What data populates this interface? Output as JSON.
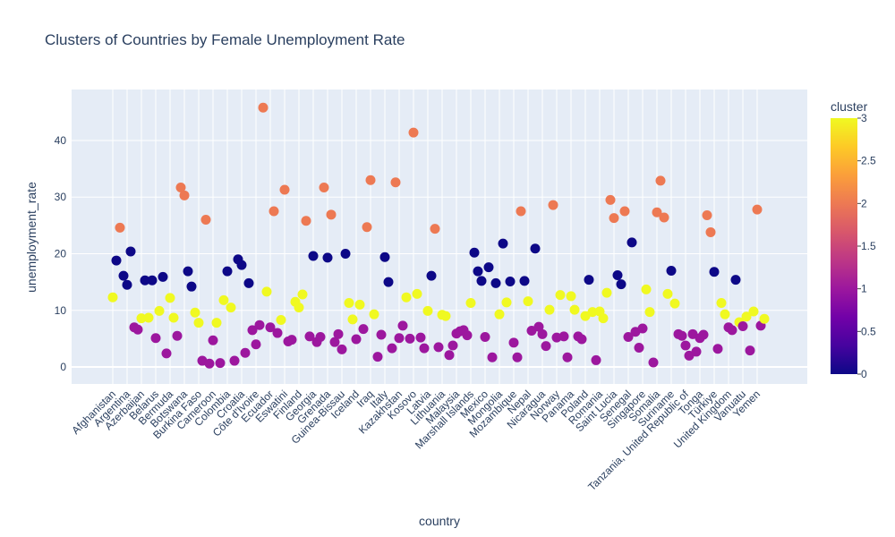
{
  "chart_data": {
    "type": "scatter",
    "title": "Clusters of Countries by Female Unemployment Rate",
    "xlabel": "country",
    "ylabel": "unemployment_rate",
    "ylim": [
      -3,
      49
    ],
    "yticks": [
      0,
      10,
      20,
      30,
      40
    ],
    "grid": true,
    "x_tick_labels": [
      "Afghanistan",
      "Argentina",
      "Azerbaijan",
      "Belarus",
      "Bermuda",
      "Botswana",
      "Burkina Faso",
      "Cameroon",
      "Colombia",
      "Croatia",
      "Côte d'Ivoire",
      "Ecuador",
      "Eswatini",
      "Finland",
      "Georgia",
      "Grenada",
      "Guinea-Bissau",
      "Iceland",
      "Iraq",
      "Italy",
      "Kazakhstan",
      "Kosovo",
      "Latvia",
      "Lithuania",
      "Malaysia",
      "Marshall Islands",
      "Mexico",
      "Mongolia",
      "Mozambique",
      "Nepal",
      "Nicaragua",
      "Norway",
      "Panama",
      "Poland",
      "Romania",
      "Saint Lucia",
      "Senegal",
      "Singapore",
      "Somalia",
      "Suriname",
      "Tanzania, United Republic of",
      "Tonga",
      "Türkiye",
      "United Kingdom",
      "Vanuatu",
      "Yemen"
    ],
    "color_scale": {
      "title": "cluster",
      "range": [
        0,
        3
      ],
      "ticks": [
        0,
        0.5,
        1,
        1.5,
        2,
        2.5,
        3
      ],
      "stops": [
        "#0d0887",
        "#46039f",
        "#7201a8",
        "#9c179e",
        "#bd3786",
        "#d8576b",
        "#ed7953",
        "#fb9f3a",
        "#fdca26",
        "#f0f921"
      ]
    },
    "points": [
      {
        "x": 0,
        "y": 12.3,
        "cluster": 3
      },
      {
        "x": 1,
        "y": 18.8,
        "cluster": 0
      },
      {
        "x": 2,
        "y": 24.6,
        "cluster": 2
      },
      {
        "x": 3,
        "y": 16.1,
        "cluster": 0
      },
      {
        "x": 4,
        "y": 14.5,
        "cluster": 0
      },
      {
        "x": 5,
        "y": 20.4,
        "cluster": 0
      },
      {
        "x": 6,
        "y": 7.0,
        "cluster": 1
      },
      {
        "x": 7,
        "y": 6.6,
        "cluster": 1
      },
      {
        "x": 8,
        "y": 8.6,
        "cluster": 3
      },
      {
        "x": 9,
        "y": 15.3,
        "cluster": 0
      },
      {
        "x": 10,
        "y": 8.7,
        "cluster": 3
      },
      {
        "x": 11,
        "y": 15.3,
        "cluster": 0
      },
      {
        "x": 12,
        "y": 5.1,
        "cluster": 1
      },
      {
        "x": 13,
        "y": 9.9,
        "cluster": 3
      },
      {
        "x": 14,
        "y": 15.9,
        "cluster": 0
      },
      {
        "x": 15,
        "y": 2.4,
        "cluster": 1
      },
      {
        "x": 16,
        "y": 12.2,
        "cluster": 3
      },
      {
        "x": 17,
        "y": 8.7,
        "cluster": 3
      },
      {
        "x": 18,
        "y": 5.5,
        "cluster": 1
      },
      {
        "x": 19,
        "y": 31.7,
        "cluster": 2
      },
      {
        "x": 20,
        "y": 30.3,
        "cluster": 2
      },
      {
        "x": 21,
        "y": 16.9,
        "cluster": 0
      },
      {
        "x": 22,
        "y": 14.2,
        "cluster": 0
      },
      {
        "x": 23,
        "y": 9.6,
        "cluster": 3
      },
      {
        "x": 24,
        "y": 7.8,
        "cluster": 3
      },
      {
        "x": 25,
        "y": 1.1,
        "cluster": 1
      },
      {
        "x": 26,
        "y": 26.0,
        "cluster": 2
      },
      {
        "x": 27,
        "y": 0.6,
        "cluster": 1
      },
      {
        "x": 28,
        "y": 4.7,
        "cluster": 1
      },
      {
        "x": 29,
        "y": 7.8,
        "cluster": 3
      },
      {
        "x": 30,
        "y": 0.7,
        "cluster": 1
      },
      {
        "x": 31,
        "y": 11.8,
        "cluster": 3
      },
      {
        "x": 32,
        "y": 16.9,
        "cluster": 0
      },
      {
        "x": 33,
        "y": 10.5,
        "cluster": 3
      },
      {
        "x": 34,
        "y": 1.1,
        "cluster": 1
      },
      {
        "x": 35,
        "y": 19.0,
        "cluster": 0
      },
      {
        "x": 36,
        "y": 18.0,
        "cluster": 0
      },
      {
        "x": 37,
        "y": 2.5,
        "cluster": 1
      },
      {
        "x": 38,
        "y": 14.8,
        "cluster": 0
      },
      {
        "x": 39,
        "y": 6.5,
        "cluster": 1
      },
      {
        "x": 40,
        "y": 4.0,
        "cluster": 1
      },
      {
        "x": 41,
        "y": 7.4,
        "cluster": 1
      },
      {
        "x": 42,
        "y": 45.8,
        "cluster": 2
      },
      {
        "x": 43,
        "y": 13.3,
        "cluster": 3
      },
      {
        "x": 44,
        "y": 7.0,
        "cluster": 1
      },
      {
        "x": 45,
        "y": 27.5,
        "cluster": 2
      },
      {
        "x": 46,
        "y": 6.0,
        "cluster": 1
      },
      {
        "x": 47,
        "y": 8.3,
        "cluster": 3
      },
      {
        "x": 48,
        "y": 31.3,
        "cluster": 2
      },
      {
        "x": 49,
        "y": 4.5,
        "cluster": 1
      },
      {
        "x": 50,
        "y": 4.8,
        "cluster": 1
      },
      {
        "x": 51,
        "y": 11.5,
        "cluster": 3
      },
      {
        "x": 52,
        "y": 10.5,
        "cluster": 3
      },
      {
        "x": 53,
        "y": 12.8,
        "cluster": 3
      },
      {
        "x": 54,
        "y": 25.8,
        "cluster": 2
      },
      {
        "x": 55,
        "y": 5.4,
        "cluster": 1
      },
      {
        "x": 56,
        "y": 19.6,
        "cluster": 0
      },
      {
        "x": 57,
        "y": 4.4,
        "cluster": 1
      },
      {
        "x": 58,
        "y": 5.3,
        "cluster": 1
      },
      {
        "x": 59,
        "y": 31.7,
        "cluster": 2
      },
      {
        "x": 60,
        "y": 19.3,
        "cluster": 0
      },
      {
        "x": 61,
        "y": 26.9,
        "cluster": 2
      },
      {
        "x": 62,
        "y": 4.4,
        "cluster": 1
      },
      {
        "x": 63,
        "y": 5.8,
        "cluster": 1
      },
      {
        "x": 64,
        "y": 3.1,
        "cluster": 1
      },
      {
        "x": 65,
        "y": 20.0,
        "cluster": 0
      },
      {
        "x": 66,
        "y": 11.3,
        "cluster": 3
      },
      {
        "x": 67,
        "y": 8.4,
        "cluster": 3
      },
      {
        "x": 68,
        "y": 4.9,
        "cluster": 1
      },
      {
        "x": 69,
        "y": 11.0,
        "cluster": 3
      },
      {
        "x": 70,
        "y": 6.7,
        "cluster": 1
      },
      {
        "x": 71,
        "y": 24.7,
        "cluster": 2
      },
      {
        "x": 72,
        "y": 33.0,
        "cluster": 2
      },
      {
        "x": 73,
        "y": 9.3,
        "cluster": 3
      },
      {
        "x": 74,
        "y": 1.8,
        "cluster": 1
      },
      {
        "x": 75,
        "y": 5.7,
        "cluster": 1
      },
      {
        "x": 76,
        "y": 19.4,
        "cluster": 0
      },
      {
        "x": 77,
        "y": 15.0,
        "cluster": 0
      },
      {
        "x": 78,
        "y": 3.3,
        "cluster": 1
      },
      {
        "x": 79,
        "y": 32.6,
        "cluster": 2
      },
      {
        "x": 80,
        "y": 5.1,
        "cluster": 1
      },
      {
        "x": 81,
        "y": 7.3,
        "cluster": 1
      },
      {
        "x": 82,
        "y": 12.3,
        "cluster": 3
      },
      {
        "x": 83,
        "y": 5.0,
        "cluster": 1
      },
      {
        "x": 84,
        "y": 41.4,
        "cluster": 2
      },
      {
        "x": 85,
        "y": 12.9,
        "cluster": 3
      },
      {
        "x": 86,
        "y": 5.2,
        "cluster": 1
      },
      {
        "x": 87,
        "y": 3.3,
        "cluster": 1
      },
      {
        "x": 88,
        "y": 9.9,
        "cluster": 3
      },
      {
        "x": 89,
        "y": 16.1,
        "cluster": 0
      },
      {
        "x": 90,
        "y": 24.4,
        "cluster": 2
      },
      {
        "x": 91,
        "y": 3.5,
        "cluster": 1
      },
      {
        "x": 92,
        "y": 9.2,
        "cluster": 3
      },
      {
        "x": 93,
        "y": 9.0,
        "cluster": 3
      },
      {
        "x": 94,
        "y": 2.1,
        "cluster": 1
      },
      {
        "x": 95,
        "y": 3.8,
        "cluster": 1
      },
      {
        "x": 96,
        "y": 5.9,
        "cluster": 1
      },
      {
        "x": 97,
        "y": 6.3,
        "cluster": 1
      },
      {
        "x": 98,
        "y": 6.5,
        "cluster": 1
      },
      {
        "x": 99,
        "y": 5.6,
        "cluster": 1
      },
      {
        "x": 100,
        "y": 11.3,
        "cluster": 3
      },
      {
        "x": 101,
        "y": 20.2,
        "cluster": 0
      },
      {
        "x": 102,
        "y": 16.9,
        "cluster": 0
      },
      {
        "x": 103,
        "y": 15.2,
        "cluster": 0
      },
      {
        "x": 104,
        "y": 5.3,
        "cluster": 1
      },
      {
        "x": 105,
        "y": 17.6,
        "cluster": 0
      },
      {
        "x": 106,
        "y": 1.7,
        "cluster": 1
      },
      {
        "x": 107,
        "y": 14.8,
        "cluster": 0
      },
      {
        "x": 108,
        "y": 9.3,
        "cluster": 3
      },
      {
        "x": 109,
        "y": 21.8,
        "cluster": 0
      },
      {
        "x": 110,
        "y": 11.4,
        "cluster": 3
      },
      {
        "x": 111,
        "y": 15.1,
        "cluster": 0
      },
      {
        "x": 112,
        "y": 4.3,
        "cluster": 1
      },
      {
        "x": 113,
        "y": 1.7,
        "cluster": 1
      },
      {
        "x": 114,
        "y": 27.5,
        "cluster": 2
      },
      {
        "x": 115,
        "y": 15.2,
        "cluster": 0
      },
      {
        "x": 116,
        "y": 11.6,
        "cluster": 3
      },
      {
        "x": 117,
        "y": 6.4,
        "cluster": 1
      },
      {
        "x": 118,
        "y": 20.9,
        "cluster": 0
      },
      {
        "x": 119,
        "y": 7.1,
        "cluster": 1
      },
      {
        "x": 120,
        "y": 5.8,
        "cluster": 1
      },
      {
        "x": 121,
        "y": 3.7,
        "cluster": 1
      },
      {
        "x": 122,
        "y": 10.1,
        "cluster": 3
      },
      {
        "x": 123,
        "y": 28.6,
        "cluster": 2
      },
      {
        "x": 124,
        "y": 5.2,
        "cluster": 1
      },
      {
        "x": 125,
        "y": 12.7,
        "cluster": 3
      },
      {
        "x": 126,
        "y": 5.4,
        "cluster": 1
      },
      {
        "x": 127,
        "y": 1.7,
        "cluster": 1
      },
      {
        "x": 128,
        "y": 12.5,
        "cluster": 3
      },
      {
        "x": 129,
        "y": 10.1,
        "cluster": 3
      },
      {
        "x": 130,
        "y": 5.4,
        "cluster": 1
      },
      {
        "x": 131,
        "y": 4.9,
        "cluster": 1
      },
      {
        "x": 132,
        "y": 9.0,
        "cluster": 3
      },
      {
        "x": 133,
        "y": 15.4,
        "cluster": 0
      },
      {
        "x": 134,
        "y": 9.7,
        "cluster": 3
      },
      {
        "x": 135,
        "y": 1.2,
        "cluster": 1
      },
      {
        "x": 136,
        "y": 9.8,
        "cluster": 3
      },
      {
        "x": 137,
        "y": 8.6,
        "cluster": 3
      },
      {
        "x": 138,
        "y": 13.1,
        "cluster": 3
      },
      {
        "x": 139,
        "y": 29.5,
        "cluster": 2
      },
      {
        "x": 140,
        "y": 26.3,
        "cluster": 2
      },
      {
        "x": 141,
        "y": 16.2,
        "cluster": 0
      },
      {
        "x": 142,
        "y": 14.6,
        "cluster": 0
      },
      {
        "x": 143,
        "y": 27.5,
        "cluster": 2
      },
      {
        "x": 144,
        "y": 5.3,
        "cluster": 1
      },
      {
        "x": 145,
        "y": 22.0,
        "cluster": 0
      },
      {
        "x": 146,
        "y": 6.2,
        "cluster": 1
      },
      {
        "x": 147,
        "y": 3.4,
        "cluster": 1
      },
      {
        "x": 148,
        "y": 6.8,
        "cluster": 1
      },
      {
        "x": 149,
        "y": 13.7,
        "cluster": 3
      },
      {
        "x": 150,
        "y": 9.7,
        "cluster": 3
      },
      {
        "x": 151,
        "y": 0.8,
        "cluster": 1
      },
      {
        "x": 152,
        "y": 27.3,
        "cluster": 2
      },
      {
        "x": 153,
        "y": 32.9,
        "cluster": 2
      },
      {
        "x": 154,
        "y": 26.4,
        "cluster": 2
      },
      {
        "x": 155,
        "y": 12.9,
        "cluster": 3
      },
      {
        "x": 156,
        "y": 17.0,
        "cluster": 0
      },
      {
        "x": 157,
        "y": 11.2,
        "cluster": 3
      },
      {
        "x": 158,
        "y": 5.8,
        "cluster": 1
      },
      {
        "x": 159,
        "y": 5.5,
        "cluster": 1
      },
      {
        "x": 160,
        "y": 3.8,
        "cluster": 1
      },
      {
        "x": 161,
        "y": 2.0,
        "cluster": 1
      },
      {
        "x": 162,
        "y": 5.8,
        "cluster": 1
      },
      {
        "x": 163,
        "y": 2.7,
        "cluster": 1
      },
      {
        "x": 164,
        "y": 5.1,
        "cluster": 1
      },
      {
        "x": 165,
        "y": 5.7,
        "cluster": 1
      },
      {
        "x": 166,
        "y": 26.8,
        "cluster": 2
      },
      {
        "x": 167,
        "y": 23.8,
        "cluster": 2
      },
      {
        "x": 168,
        "y": 16.8,
        "cluster": 0
      },
      {
        "x": 169,
        "y": 3.2,
        "cluster": 1
      },
      {
        "x": 170,
        "y": 11.3,
        "cluster": 3
      },
      {
        "x": 171,
        "y": 9.3,
        "cluster": 3
      },
      {
        "x": 172,
        "y": 7.0,
        "cluster": 1
      },
      {
        "x": 173,
        "y": 6.5,
        "cluster": 1
      },
      {
        "x": 174,
        "y": 15.4,
        "cluster": 0
      },
      {
        "x": 175,
        "y": 7.9,
        "cluster": 3
      },
      {
        "x": 176,
        "y": 7.2,
        "cluster": 1
      },
      {
        "x": 177,
        "y": 8.9,
        "cluster": 3
      },
      {
        "x": 178,
        "y": 2.9,
        "cluster": 1
      },
      {
        "x": 179,
        "y": 9.8,
        "cluster": 3
      },
      {
        "x": 180,
        "y": 27.8,
        "cluster": 2
      },
      {
        "x": 181,
        "y": 7.3,
        "cluster": 1
      },
      {
        "x": 182,
        "y": 8.5,
        "cluster": 3
      }
    ]
  }
}
